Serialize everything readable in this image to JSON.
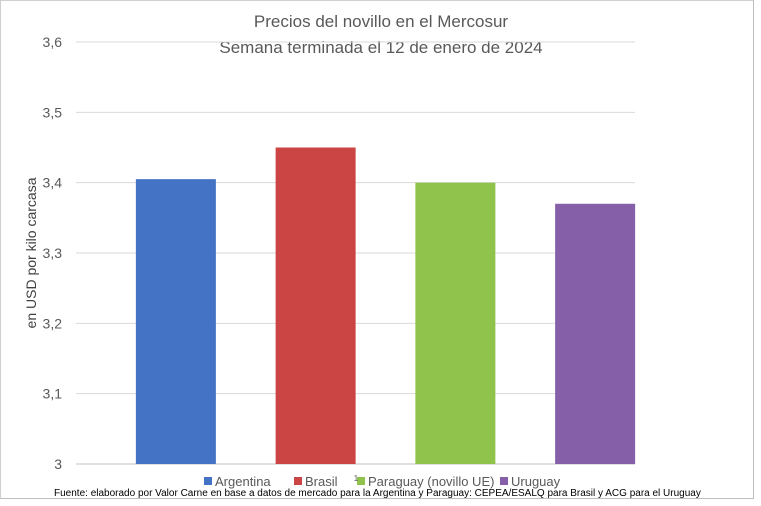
{
  "chart_data": {
    "type": "bar",
    "title": "Precios del novillo en el Mercosur",
    "subtitle": "Semana terminada el 12 de enero de 2024",
    "xlabel": "",
    "ylabel": "en USD por kilo carcasa",
    "ylim": [
      3.0,
      3.6
    ],
    "yticks": [
      "3",
      "3,1",
      "3,2",
      "3,3",
      "3,4",
      "3,5",
      "3,6"
    ],
    "categories": [
      "Argentina",
      "Brasil",
      "Paraguay (novillo UE)",
      "Uruguay"
    ],
    "values": [
      3.405,
      3.45,
      3.4,
      3.37
    ],
    "colors": [
      "#4472c4",
      "#cc4545",
      "#8fc34b",
      "#8560a8"
    ],
    "grid": true,
    "legend_position": "bottom",
    "footnote_marker": "1",
    "source_note": "Fuente: elaborado por Valor Carne en base a datos de mercado para la Argentina y Paraguay: CEPEA/ESALQ para Brasil y ACG para el Uruguay"
  }
}
